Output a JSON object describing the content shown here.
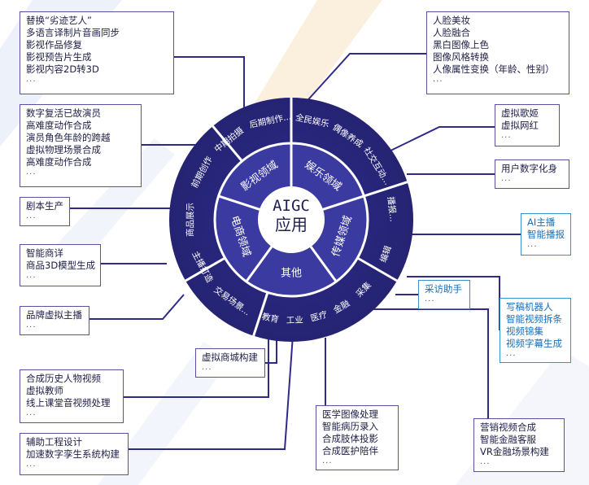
{
  "center": {
    "line1": "AIGC",
    "line2": "应用"
  },
  "sectors": [
    {
      "label": "影视领域"
    },
    {
      "label": "娱乐领域"
    },
    {
      "label": "传媒领域"
    },
    {
      "label": "其他"
    },
    {
      "label": "电商领域"
    }
  ],
  "ring_labels": [
    {
      "text": "前期创作"
    },
    {
      "text": "中期拍摄"
    },
    {
      "text": "后期制作..."
    },
    {
      "text": "全民娱乐"
    },
    {
      "text": "偶像养成"
    },
    {
      "text": "社交互动..."
    },
    {
      "text": "播报..."
    },
    {
      "text": "编辑"
    },
    {
      "text": "采集"
    },
    {
      "text": "金融"
    },
    {
      "text": "医疗"
    },
    {
      "text": "工业"
    },
    {
      "text": "教育"
    },
    {
      "text": "交易场景..."
    },
    {
      "text": "主播打造"
    },
    {
      "text": "商品展示"
    }
  ],
  "boxes": [
    {
      "lines": [
        "替换“劣迹艺人”",
        "多语言译制片音画同步",
        "影视作品修复",
        "影视预告片生成",
        "影视内容2D转3D"
      ],
      "more": "..."
    },
    {
      "lines": [
        "数字复活已故演员",
        "高难度动作合成",
        "演员角色年龄的跨越",
        "虚拟物理场景合成",
        "高难度动作合成"
      ],
      "more": "..."
    },
    {
      "lines": [
        "剧本生产"
      ],
      "more": "..."
    },
    {
      "lines": [
        "智能商详",
        "商品3D模型生成"
      ],
      "more": "..."
    },
    {
      "lines": [
        "品牌虚拟主播"
      ],
      "more": "..."
    },
    {
      "lines": [
        "合成历史人物视频",
        "虚拟教师",
        "线上课堂音视频处理"
      ],
      "more": "..."
    },
    {
      "lines": [
        "辅助工程设计",
        "加速数字孪生系统构建"
      ],
      "more": "..."
    },
    {
      "lines": [
        "虚拟商城构建"
      ],
      "more": "..."
    },
    {
      "lines": [
        "医学图像处理",
        "智能病历录入",
        "合成肢体投影",
        "合成医护陪伴"
      ],
      "more": "..."
    },
    {
      "lines": [
        "营销视频合成",
        "智能金融客服",
        "VR金融场景构建"
      ],
      "more": "..."
    },
    {
      "lines": [
        "人脸美妆",
        "人脸融合",
        "黑白图像上色",
        "图像风格转换",
        "人像属性变换（年龄、性别）"
      ],
      "more": "..."
    },
    {
      "lines": [
        "虚拟歌姬",
        "虚拟网红"
      ],
      "more": "..."
    },
    {
      "lines": [
        "用户数字化身"
      ],
      "more": "..."
    },
    {
      "lines": [
        "AI主播",
        "智能播报"
      ],
      "more": "..."
    },
    {
      "lines": [
        "采访助手"
      ],
      "more": "..."
    },
    {
      "lines": [
        "写稿机器人",
        "智能视频拆条",
        "视频锦集",
        "视频字幕生成"
      ],
      "more": "..."
    }
  ]
}
